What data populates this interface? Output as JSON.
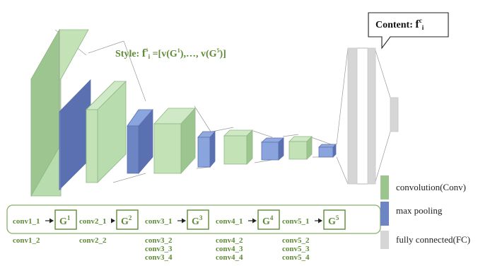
{
  "style_label": {
    "prefix": "Style: ",
    "f": "f",
    "sup": "s",
    "sub": "i",
    "rest": " =[v(G",
    "g1sup": "1",
    "mid": "),…, v(G",
    "g5sup": "5",
    "end": ")]"
  },
  "content_label": {
    "prefix": "Content: ",
    "f": "f",
    "sup": "c",
    "sub": "i"
  },
  "blocks": [
    {
      "g": "G",
      "sup": "1",
      "first": "conv1_1",
      "others": [
        "conv1_2"
      ]
    },
    {
      "g": "G",
      "sup": "2",
      "first": "conv2_1",
      "others": [
        "conv2_2"
      ]
    },
    {
      "g": "G",
      "sup": "3",
      "first": "conv3_1",
      "others": [
        "conv3_2",
        "conv3_3",
        "conv3_4"
      ]
    },
    {
      "g": "G",
      "sup": "4",
      "first": "conv4_1",
      "others": [
        "conv4_2",
        "conv4_3",
        "conv4_4"
      ]
    },
    {
      "g": "G",
      "sup": "5",
      "first": "conv5_1",
      "others": [
        "conv5_2",
        "conv5_3",
        "conv5_4"
      ]
    }
  ],
  "legend": [
    {
      "label": "convolution(Conv)",
      "color": "#9cc58f"
    },
    {
      "label": "max pooling",
      "color": "#6e85c4"
    },
    {
      "label": "fully connected(FC)",
      "color": "#d6d6d6"
    }
  ]
}
